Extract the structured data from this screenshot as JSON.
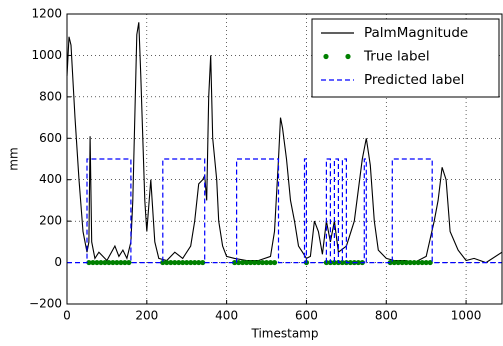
{
  "chart_data": {
    "type": "line",
    "xlabel": "Timestamp",
    "ylabel": "mm",
    "xlim": [
      0,
      1090
    ],
    "ylim": [
      -200,
      1200
    ],
    "xticks": [
      0,
      200,
      400,
      600,
      800,
      1000
    ],
    "yticks": [
      {
        "value": -200,
        "label": "−200"
      },
      0,
      200,
      400,
      600,
      800,
      1000,
      1200
    ],
    "grid": true,
    "legend": "upper right",
    "series": [
      {
        "name": "PalmMagnitude",
        "color": "#000000",
        "linestyle": "solid",
        "x": [
          0,
          5,
          10,
          20,
          30,
          40,
          50,
          55,
          58,
          62,
          70,
          80,
          100,
          120,
          130,
          140,
          150,
          160,
          165,
          170,
          175,
          180,
          185,
          190,
          195,
          200,
          210,
          220,
          230,
          250,
          270,
          290,
          310,
          320,
          330,
          340,
          345,
          350,
          355,
          360,
          365,
          370,
          375,
          380,
          390,
          400,
          420,
          450,
          480,
          510,
          520,
          530,
          535,
          540,
          550,
          560,
          570,
          580,
          590,
          600,
          610,
          620,
          630,
          640,
          650,
          660,
          670,
          680,
          700,
          720,
          740,
          750,
          760,
          770,
          780,
          800,
          820,
          850,
          870,
          900,
          920,
          930,
          940,
          950,
          960,
          980,
          1000,
          1020,
          1050,
          1090
        ],
        "values": [
          900,
          1090,
          1050,
          700,
          400,
          150,
          50,
          100,
          610,
          100,
          20,
          50,
          10,
          80,
          30,
          60,
          20,
          100,
          300,
          700,
          1100,
          1160,
          900,
          600,
          300,
          150,
          400,
          100,
          20,
          10,
          50,
          20,
          80,
          200,
          380,
          400,
          420,
          300,
          800,
          1000,
          600,
          500,
          400,
          200,
          80,
          30,
          20,
          10,
          10,
          30,
          150,
          500,
          700,
          650,
          500,
          300,
          200,
          80,
          50,
          20,
          30,
          200,
          150,
          40,
          200,
          100,
          200,
          50,
          80,
          200,
          500,
          600,
          470,
          200,
          60,
          20,
          10,
          10,
          0,
          30,
          200,
          300,
          460,
          400,
          150,
          60,
          10,
          20,
          0,
          50
        ]
      },
      {
        "name": "True label",
        "color": "#008000",
        "marker": "dot",
        "x": [
          55,
          65,
          75,
          85,
          95,
          105,
          115,
          125,
          135,
          145,
          155,
          240,
          250,
          260,
          270,
          280,
          290,
          300,
          310,
          320,
          330,
          340,
          420,
          430,
          440,
          450,
          460,
          470,
          480,
          490,
          500,
          510,
          520,
          600,
          650,
          660,
          670,
          680,
          690,
          700,
          710,
          720,
          730,
          740,
          810,
          820,
          830,
          840,
          850,
          860,
          870,
          880,
          890,
          900,
          910
        ],
        "values": [
          0,
          0,
          0,
          0,
          0,
          0,
          0,
          0,
          0,
          0,
          0,
          0,
          0,
          0,
          0,
          0,
          0,
          0,
          0,
          0,
          0,
          0,
          0,
          0,
          0,
          0,
          0,
          0,
          0,
          0,
          0,
          0,
          0,
          0,
          0,
          0,
          0,
          0,
          0,
          0,
          0,
          0,
          0,
          0,
          0,
          0,
          0,
          0,
          0,
          0,
          0,
          0,
          0,
          0,
          0
        ]
      },
      {
        "name": "Predicted label",
        "color": "#0000ff",
        "linestyle": "dashed",
        "x": [
          0,
          50,
          50,
          160,
          160,
          240,
          240,
          345,
          345,
          425,
          425,
          530,
          530,
          595,
          595,
          600,
          600,
          650,
          650,
          660,
          660,
          670,
          670,
          680,
          680,
          690,
          690,
          700,
          700,
          745,
          745,
          750,
          750,
          815,
          815,
          915,
          915,
          1090
        ],
        "values": [
          0,
          0,
          500,
          500,
          0,
          0,
          500,
          500,
          0,
          0,
          500,
          500,
          0,
          0,
          500,
          500,
          0,
          0,
          500,
          500,
          0,
          0,
          500,
          500,
          0,
          0,
          500,
          500,
          0,
          0,
          500,
          500,
          0,
          0,
          500,
          500,
          0,
          0
        ]
      }
    ]
  }
}
